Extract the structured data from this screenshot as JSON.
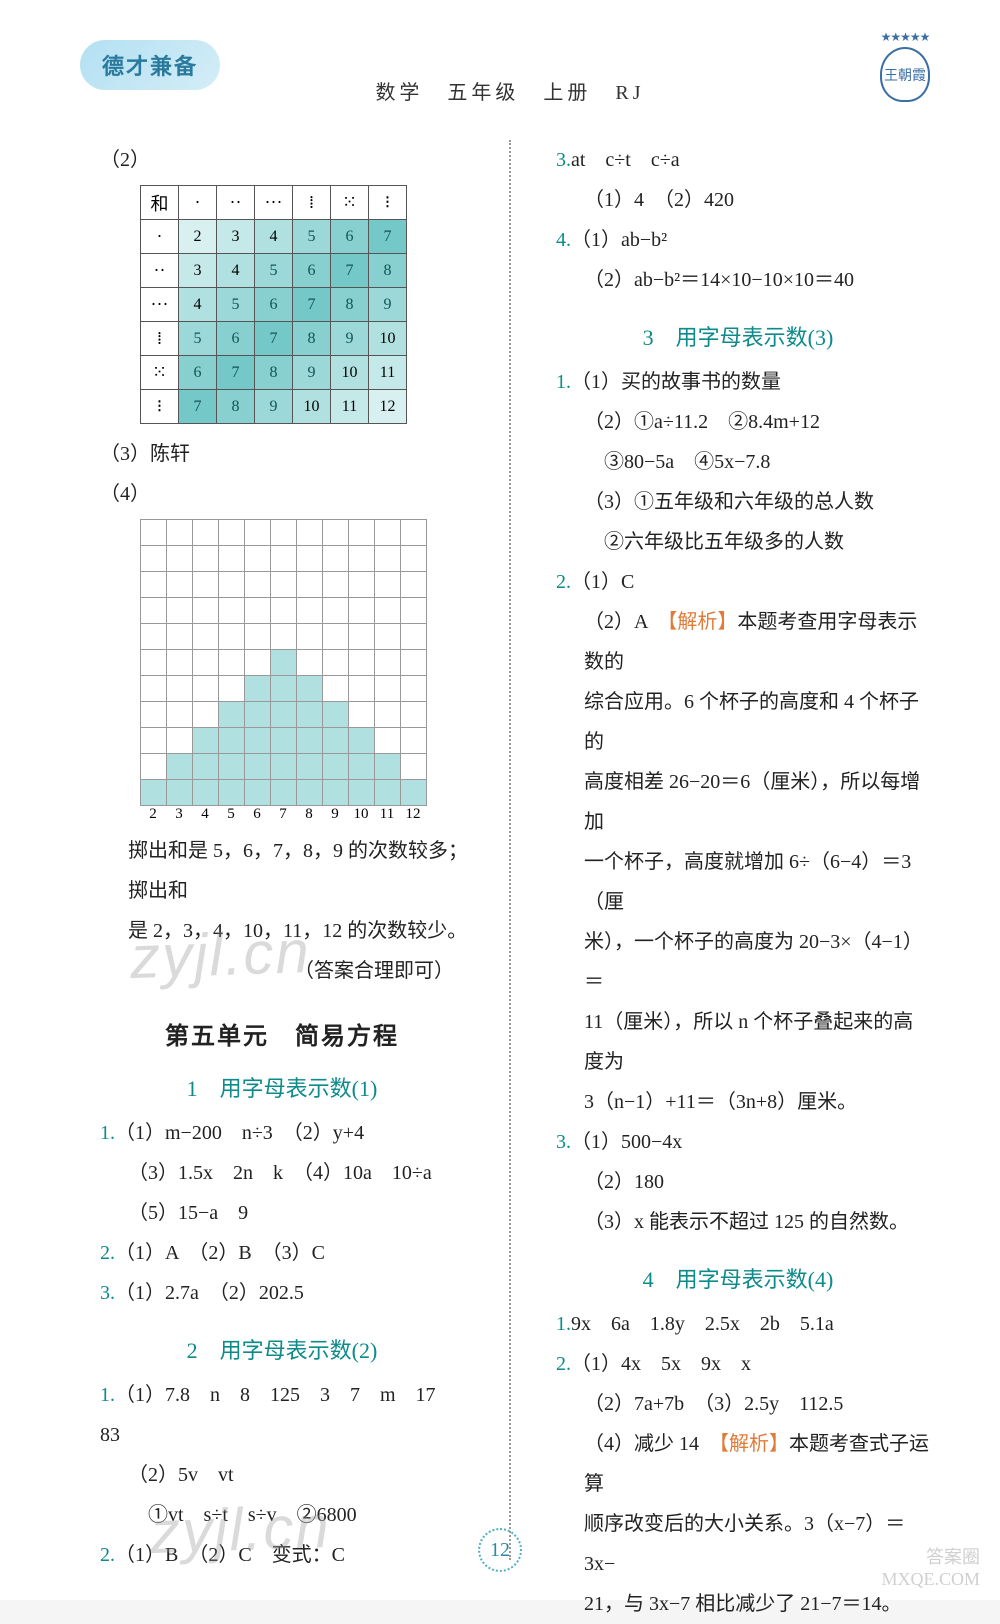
{
  "header": {
    "left_badge": "德才兼备",
    "center": "数学　五年级　上册　RJ",
    "stars": "★★★★★",
    "medal_text": "王朝霞"
  },
  "left": {
    "l0": "（2）",
    "sum_table": {
      "corner": "和",
      "col_heads": [
        "·",
        "··",
        "···",
        "⁞",
        "⁙",
        "⁝"
      ],
      "row_heads": [
        "·",
        "··",
        "···",
        "⁞",
        "⁙",
        "⁝"
      ],
      "cells": [
        [
          {
            "v": "2",
            "c": "s2"
          },
          {
            "v": "3",
            "c": "s3"
          },
          {
            "v": "4",
            "c": "s4"
          },
          {
            "v": "5",
            "c": "s5"
          },
          {
            "v": "6",
            "c": "s6"
          },
          {
            "v": "7",
            "c": "s7"
          }
        ],
        [
          {
            "v": "3",
            "c": "s3"
          },
          {
            "v": "4",
            "c": "s4"
          },
          {
            "v": "5",
            "c": "s5"
          },
          {
            "v": "6",
            "c": "s6"
          },
          {
            "v": "7",
            "c": "s7"
          },
          {
            "v": "8",
            "c": "s8"
          }
        ],
        [
          {
            "v": "4",
            "c": "s4"
          },
          {
            "v": "5",
            "c": "s5"
          },
          {
            "v": "6",
            "c": "s6"
          },
          {
            "v": "7",
            "c": "s7"
          },
          {
            "v": "8",
            "c": "s8"
          },
          {
            "v": "9",
            "c": "s9"
          }
        ],
        [
          {
            "v": "5",
            "c": "s5"
          },
          {
            "v": "6",
            "c": "s6"
          },
          {
            "v": "7",
            "c": "s7"
          },
          {
            "v": "8",
            "c": "s8"
          },
          {
            "v": "9",
            "c": "s9"
          },
          {
            "v": "10",
            "c": "s10"
          }
        ],
        [
          {
            "v": "6",
            "c": "s6"
          },
          {
            "v": "7",
            "c": "s7"
          },
          {
            "v": "8",
            "c": "s8"
          },
          {
            "v": "9",
            "c": "s9"
          },
          {
            "v": "10",
            "c": "s10"
          },
          {
            "v": "11",
            "c": "s11"
          }
        ],
        [
          {
            "v": "7",
            "c": "s7"
          },
          {
            "v": "8",
            "c": "s8"
          },
          {
            "v": "9",
            "c": "s9"
          },
          {
            "v": "10",
            "c": "s10"
          },
          {
            "v": "11",
            "c": "s11"
          },
          {
            "v": "12",
            "c": "s12"
          }
        ]
      ]
    },
    "l1": "（3）陈轩",
    "l2": "（4）",
    "histo": {
      "rows": 11,
      "cols": 11,
      "labels": [
        "2",
        "3",
        "4",
        "5",
        "6",
        "7",
        "8",
        "9",
        "10",
        "11",
        "12"
      ],
      "fill_from_bottom": [
        1,
        2,
        3,
        4,
        5,
        6,
        5,
        4,
        3,
        2,
        1
      ]
    },
    "l3a": "掷出和是 5，6，7，8，9 的次数较多；掷出和",
    "l3b": "是 2，3，4，10，11，12 的次数较少。",
    "l4": "（答案合理即可）",
    "unit_title": "第五单元　简易方程",
    "sec1_title": "1　用字母表示数(1)",
    "s1_1": "（1）m−200　n÷3　（2）y+4",
    "s1_2": "（3）1.5x　2n　k　（4）10a　10÷a",
    "s1_3": "（5）15−a　9",
    "s1_4": "（1）A　（2）B　（3）C",
    "s1_5": "（1）2.7a　（2）202.5",
    "sec2_title": "2　用字母表示数(2)",
    "s2_1": "（1）7.8　n　8　125　3　7　m　17　83",
    "s2_2": "（2）5v　vt",
    "s2_3": "　①vt　s÷t　s÷v　②6800",
    "s2_4": "（1）B　（2）C　变式：C",
    "n1": "1.",
    "n2": "2.",
    "n3": "3."
  },
  "right": {
    "r1": "at　c÷t　c÷a",
    "r2": "（1）4　（2）420",
    "r3": "（1）ab−b²",
    "r4": "（2）ab−b²＝14×10−10×10＝40",
    "sec3_title": "3　用字母表示数(3)",
    "r5": "（1）买的故事书的数量",
    "r6": "（2）①a÷11.2　②8.4m+12",
    "r7": "　③80−5a　④5x−7.8",
    "r8": "（3）①五年级和六年级的总人数",
    "r9": "　②六年级比五年级多的人数",
    "r10": "（1）C",
    "r11a": "（2）A　",
    "r11b": "【解析】",
    "r11c": "本题考查用字母表示数的",
    "r12": "综合应用。6 个杯子的高度和 4 个杯子的",
    "r13": "高度相差 26−20＝6（厘米），所以每增加",
    "r14": "一个杯子，高度就增加 6÷（6−4）＝3（厘",
    "r15": "米），一个杯子的高度为 20−3×（4−1）＝",
    "r16": "11（厘米），所以 n 个杯子叠起来的高度为",
    "r17": "3（n−1）+11＝（3n+8）厘米。",
    "r18": "（1）500−4x",
    "r19": "（2）180",
    "r20": "（3）x 能表示不超过 125 的自然数。",
    "sec4_title": "4　用字母表示数(4)",
    "r21": "9x　6a　1.8y　2.5x　2b　5.1a",
    "r22": "（1）4x　5x　9x　x",
    "r23": "（2）7a+7b　（3）2.5y　112.5",
    "r24a": "（4）减少 14　",
    "r24b": "【解析】",
    "r24c": "本题考查式子运算",
    "r25": "顺序改变后的大小关系。3（x−7）＝3x−",
    "r26": "21，与 3x−7 相比减少了 21−7＝14。",
    "n1": "1.",
    "n2": "2.",
    "n3": "3.",
    "n4": "4."
  },
  "watermarks": {
    "wm1": "zyjl.cn",
    "wm2": "zyjl.cn"
  },
  "page_number": "12",
  "corner": {
    "l1": "答案圈",
    "l2": "MXQE.COM"
  }
}
